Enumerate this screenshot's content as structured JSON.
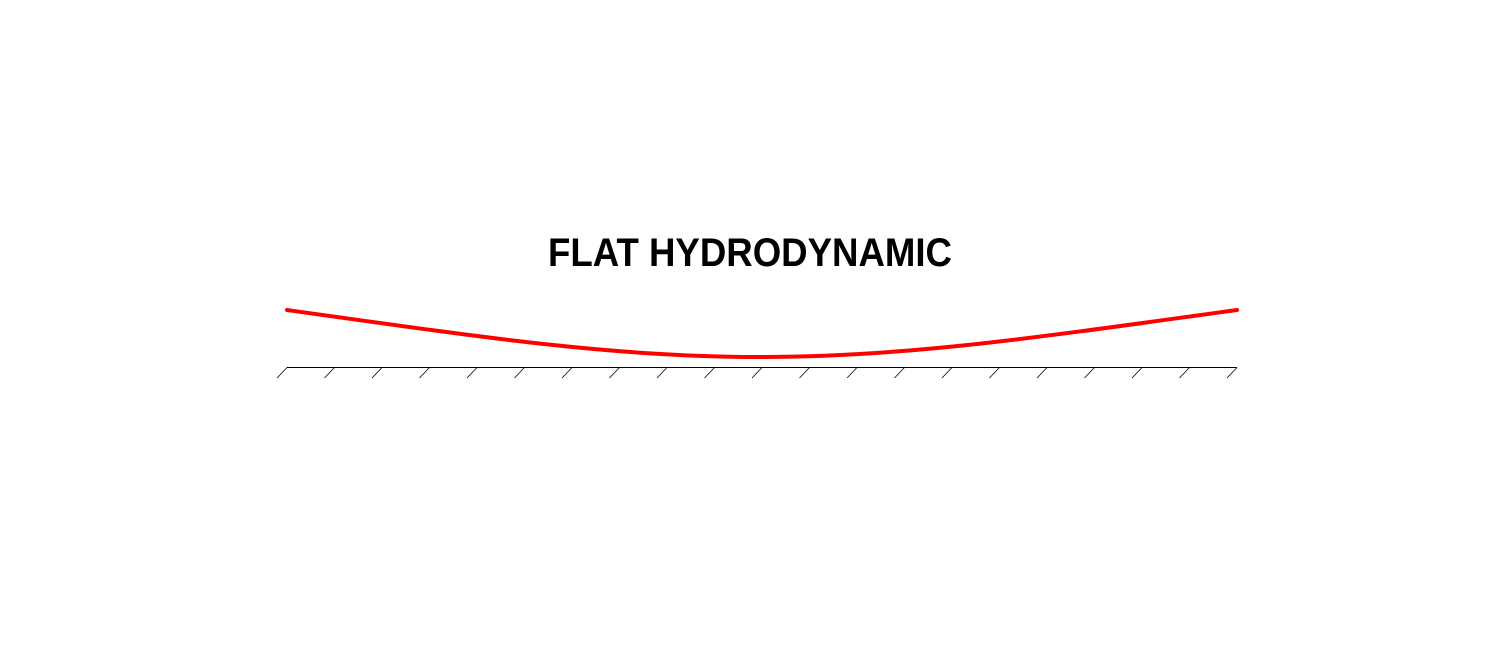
{
  "title": "FLAT HYDRODYNAMIC"
}
